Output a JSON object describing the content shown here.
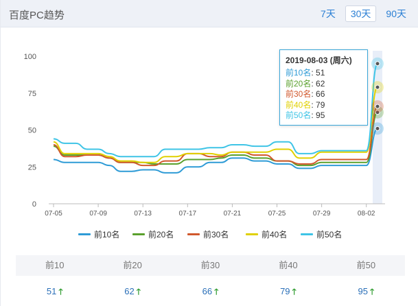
{
  "header": {
    "title": "百度PC趋势",
    "range_tabs": [
      {
        "label": "7天",
        "active": false
      },
      {
        "label": "30天",
        "active": true
      },
      {
        "label": "90天",
        "active": false
      }
    ]
  },
  "tooltip": {
    "title": "2019-08-03 (周六)",
    "rows": [
      {
        "label": "前10名",
        "value": "51"
      },
      {
        "label": "前20名",
        "value": "62"
      },
      {
        "label": "前30名",
        "value": "66"
      },
      {
        "label": "前40名",
        "value": "79"
      },
      {
        "label": "前50名",
        "value": "95"
      }
    ]
  },
  "chart_data": {
    "type": "line",
    "x": [
      "07-05",
      "07-06",
      "07-07",
      "07-08",
      "07-09",
      "07-10",
      "07-11",
      "07-12",
      "07-13",
      "07-14",
      "07-15",
      "07-16",
      "07-17",
      "07-18",
      "07-19",
      "07-20",
      "07-21",
      "07-22",
      "07-23",
      "07-24",
      "07-25",
      "07-26",
      "07-27",
      "07-28",
      "07-29",
      "07-30",
      "07-31",
      "08-01",
      "08-02",
      "08-03"
    ],
    "x_tick_labels": [
      "07-05",
      "07-09",
      "07-13",
      "07-17",
      "07-21",
      "07-25",
      "07-29",
      "08-02"
    ],
    "ylim": [
      0,
      100
    ],
    "y_ticks": [
      0,
      25,
      50,
      75,
      100
    ],
    "grid": false,
    "legend_position": "bottom",
    "colors": [
      "#2e9bd6",
      "#5aa02c",
      "#d1582c",
      "#e0d000",
      "#3ec4e6"
    ],
    "series": [
      {
        "name": "前10名",
        "values": [
          30,
          28,
          28,
          28,
          28,
          26,
          22,
          22,
          23,
          23,
          21,
          21,
          25,
          25,
          28,
          28,
          31,
          31,
          29,
          29,
          27,
          27,
          24,
          24,
          26,
          26,
          26,
          26,
          26,
          51
        ]
      },
      {
        "name": "前20名",
        "values": [
          39,
          33,
          33,
          33,
          33,
          31,
          28,
          28,
          28,
          27,
          27,
          27,
          30,
          30,
          30,
          31,
          33,
          33,
          31,
          31,
          29,
          29,
          26,
          26,
          28,
          28,
          28,
          28,
          28,
          62
        ]
      },
      {
        "name": "前30名",
        "values": [
          40,
          32,
          32,
          33,
          33,
          31,
          28,
          28,
          26,
          26,
          29,
          29,
          34,
          34,
          32,
          32,
          35,
          35,
          33,
          33,
          29,
          29,
          27,
          27,
          30,
          30,
          30,
          30,
          30,
          66
        ]
      },
      {
        "name": "前40名",
        "values": [
          42,
          34,
          34,
          34,
          34,
          32,
          29,
          29,
          28,
          28,
          32,
          32,
          34,
          34,
          34,
          33,
          35,
          35,
          35,
          35,
          37,
          37,
          31,
          31,
          35,
          35,
          35,
          35,
          35,
          79
        ]
      },
      {
        "name": "前50名",
        "values": [
          44,
          41,
          41,
          37,
          37,
          34,
          32,
          32,
          32,
          32,
          37,
          37,
          37,
          37,
          38,
          38,
          40,
          40,
          39,
          39,
          42,
          42,
          34,
          34,
          36,
          36,
          36,
          36,
          36,
          95
        ]
      }
    ]
  },
  "summary": {
    "headers": [
      "前10",
      "前20",
      "前30",
      "前40",
      "前50"
    ],
    "values": [
      "51",
      "62",
      "66",
      "79",
      "95"
    ],
    "trend_symbol": "🡑"
  }
}
